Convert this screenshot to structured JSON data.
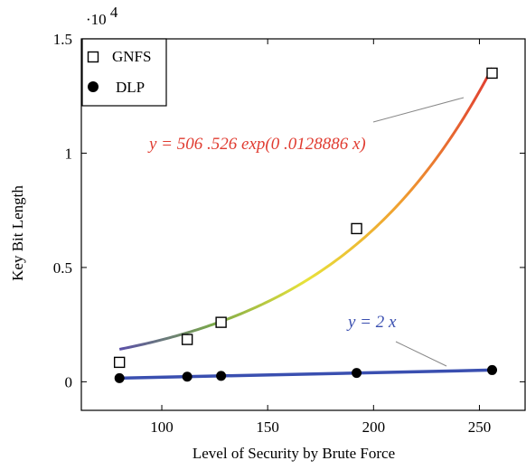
{
  "chart_data": {
    "type": "scatter",
    "xlabel": "Level of Security by Brute Force",
    "ylabel": "Key Bit Length",
    "y_multiplier_label": "·10",
    "y_multiplier_exp": "4",
    "xlim": [
      62,
      272
    ],
    "ylim": [
      -1250,
      15000
    ],
    "x_ticks": [
      100,
      150,
      200,
      250
    ],
    "x_tick_labels": [
      "100",
      "150",
      "200",
      "250"
    ],
    "y_ticks": [
      0,
      5000,
      10000,
      15000
    ],
    "y_tick_labels": [
      "0",
      "0.5",
      "1",
      "1.5"
    ],
    "legend_position": "top-left",
    "series": [
      {
        "name": "GNFS",
        "marker": "open-square",
        "x": [
          80,
          112,
          128,
          192,
          256
        ],
        "y": [
          850,
          1850,
          2600,
          6700,
          13500
        ]
      },
      {
        "name": "DLP",
        "marker": "filled-circle",
        "x": [
          80,
          112,
          128,
          192,
          256
        ],
        "y": [
          160,
          224,
          256,
          384,
          512
        ]
      }
    ],
    "fits": [
      {
        "label": "y = 506 .526 exp(0 .0128886 x)",
        "a": 506.526,
        "b": 0.0128886,
        "x_range": [
          80,
          256
        ],
        "color": "#e03c31",
        "gradient": [
          "#5b4fa8",
          "#7aa84a",
          "#e8e23a",
          "#f0a030",
          "#e03c31"
        ]
      },
      {
        "label": "y = 2 x",
        "slope": 2,
        "x_range": [
          80,
          256
        ],
        "color": "#3a4fb0"
      }
    ]
  }
}
